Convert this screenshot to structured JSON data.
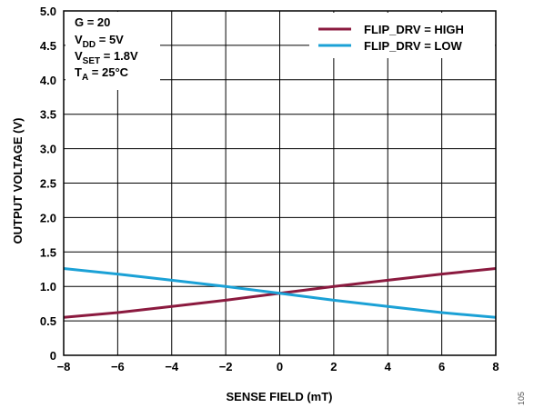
{
  "chart_data": {
    "type": "line",
    "xlabel": "SENSE FIELD (mT)",
    "ylabel": "OUTPUT VOLTAGE (V)",
    "xlim": [
      -8,
      8
    ],
    "ylim": [
      0,
      5
    ],
    "x_ticks": [
      "−8",
      "−6",
      "−4",
      "−2",
      "0",
      "2",
      "4",
      "6",
      "8"
    ],
    "y_ticks": [
      "0",
      "0.5",
      "1.0",
      "1.5",
      "2.0",
      "2.5",
      "3.0",
      "3.5",
      "4.0",
      "4.5",
      "5.0"
    ],
    "grid": true,
    "legend_position": "top-right",
    "conditions": {
      "gain": "G = 20",
      "vdd": {
        "base": "V",
        "sub": "DD",
        "rest": " = 5V"
      },
      "vset": {
        "base": "V",
        "sub": "SET",
        "rest": " = 1.8V"
      },
      "ta": {
        "base": "T",
        "sub": "A",
        "rest": " = 25°C"
      }
    },
    "series": [
      {
        "name": "FLIP_DRV = HIGH",
        "color": "#8b1a3f",
        "x": [
          -8,
          -6,
          -4,
          -2,
          0,
          2,
          4,
          6,
          8
        ],
        "y": [
          0.55,
          0.62,
          0.71,
          0.8,
          0.9,
          1.0,
          1.09,
          1.18,
          1.26
        ]
      },
      {
        "name": "FLIP_DRV = LOW",
        "color": "#1ba1d6",
        "x": [
          -8,
          -6,
          -4,
          -2,
          0,
          2,
          4,
          6,
          8
        ],
        "y": [
          1.26,
          1.18,
          1.09,
          1.0,
          0.9,
          0.8,
          0.71,
          0.62,
          0.55
        ]
      }
    ]
  },
  "figure_id": "105"
}
